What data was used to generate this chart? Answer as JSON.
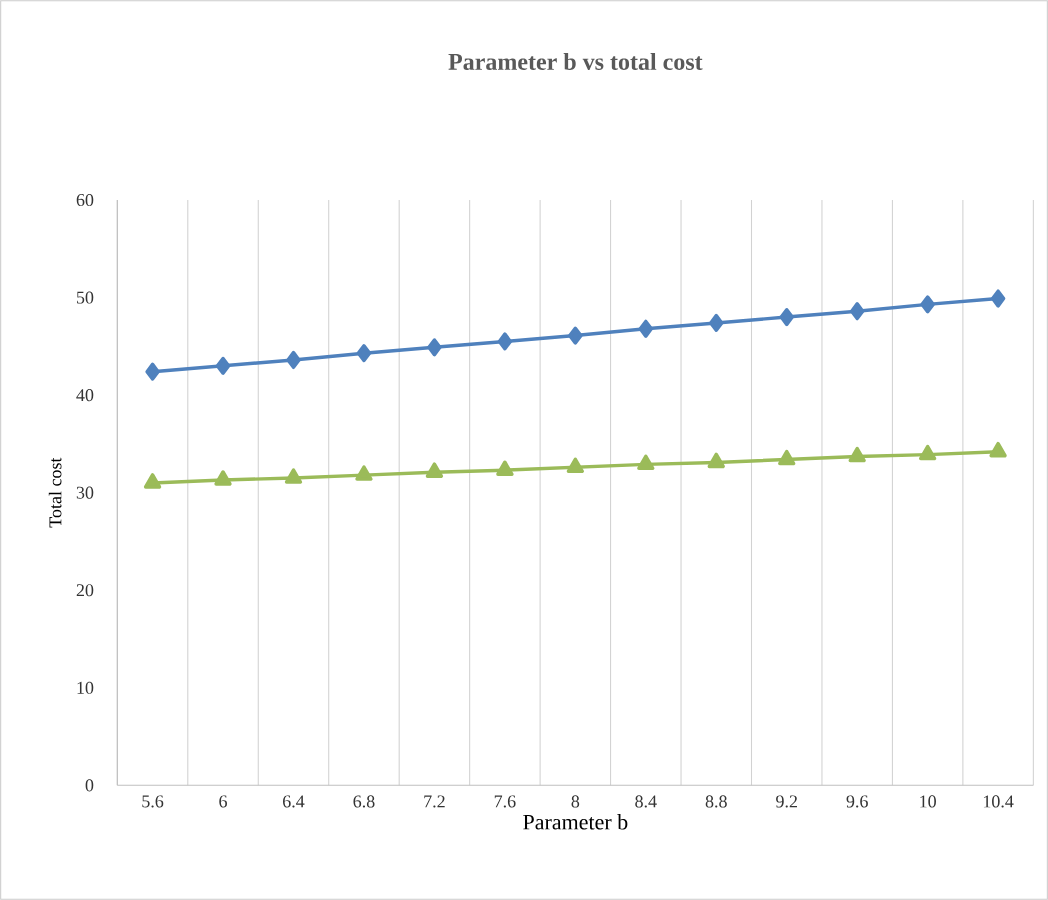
{
  "chart_data": {
    "type": "line",
    "title": "Parameter b vs total cost",
    "xlabel": "Parameter b",
    "ylabel": "Total cost",
    "categories": [
      "5.6",
      "6",
      "6.4",
      "6.8",
      "7.2",
      "7.6",
      "8",
      "8.4",
      "8.8",
      "9.2",
      "9.6",
      "10",
      "10.4"
    ],
    "series": [
      {
        "color": "#4f81bd",
        "marker": "diamond",
        "values": [
          42.4,
          43.0,
          43.6,
          44.3,
          44.9,
          45.5,
          46.1,
          46.8,
          47.4,
          48.0,
          48.6,
          49.3,
          49.9
        ]
      },
      {
        "color": "#9bbb59",
        "marker": "triangle",
        "values": [
          31.0,
          31.3,
          31.5,
          31.8,
          32.1,
          32.3,
          32.6,
          32.9,
          33.1,
          33.4,
          33.7,
          33.9,
          34.2
        ]
      }
    ],
    "ylim": [
      0,
      60
    ],
    "yticks": [
      0,
      10,
      20,
      30,
      40,
      50,
      60
    ],
    "grid": "x",
    "line_style": "solid"
  }
}
